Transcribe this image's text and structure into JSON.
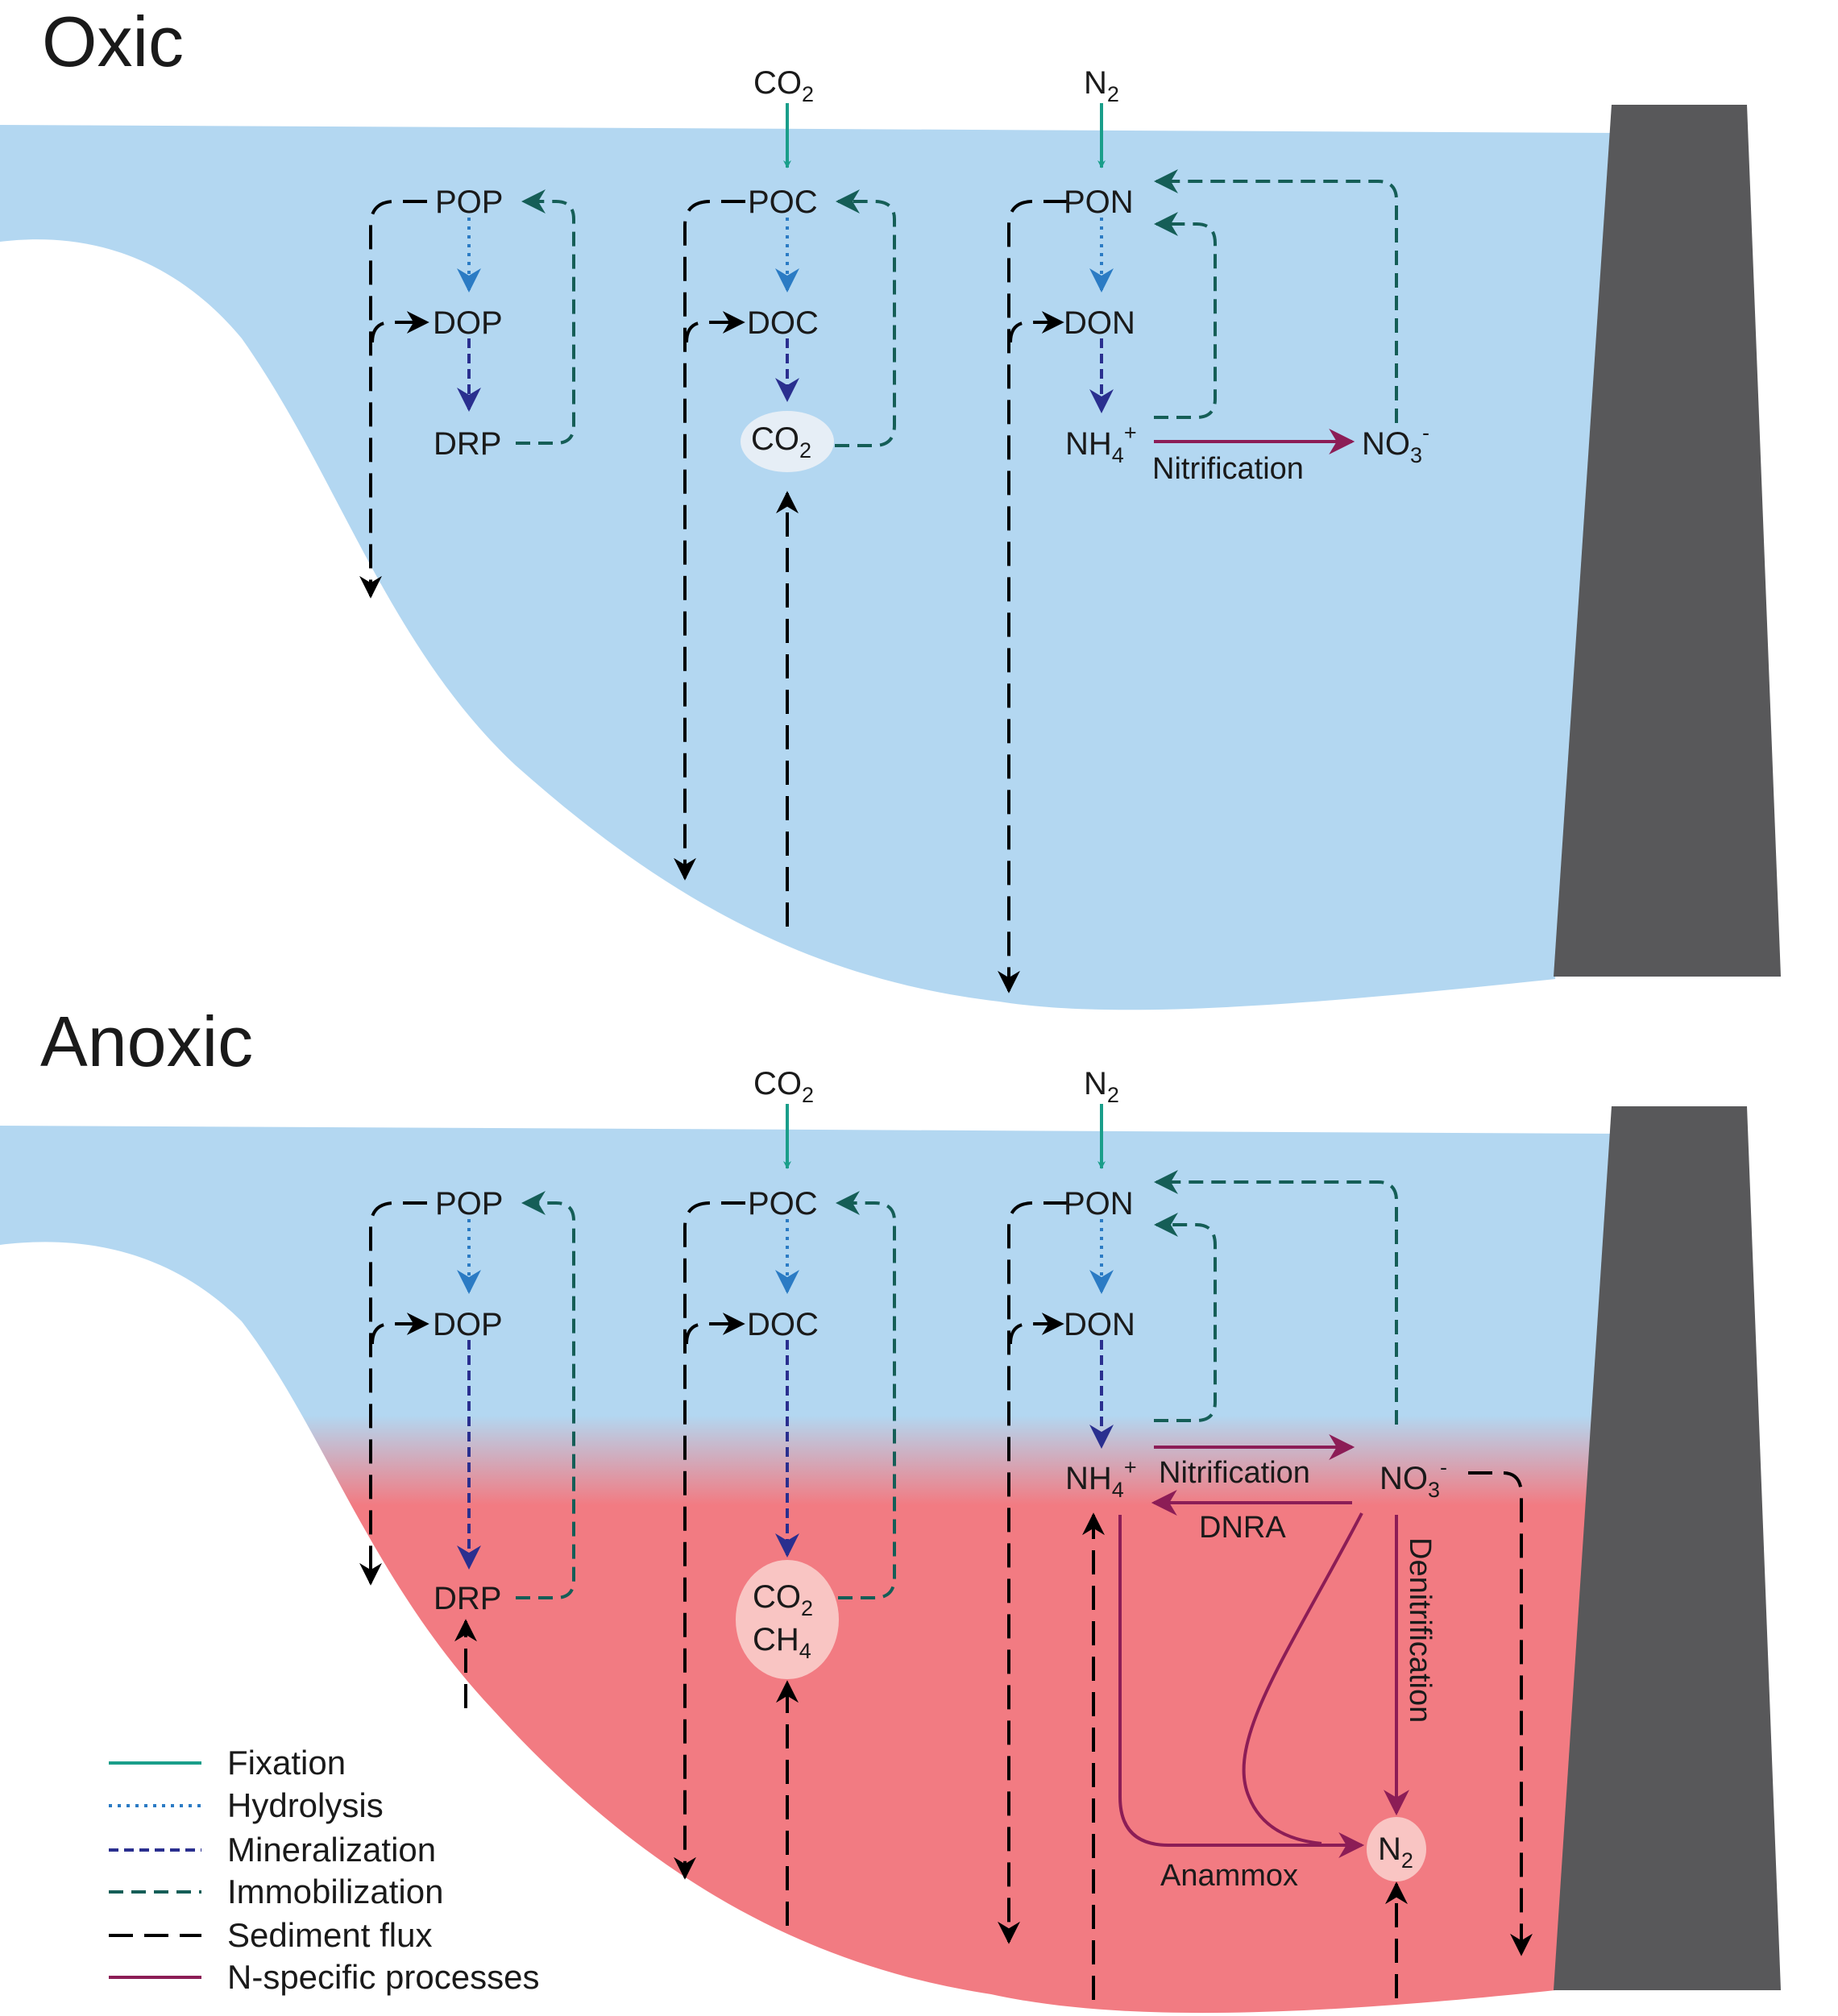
{
  "panels": {
    "oxic": {
      "title": "Oxic",
      "atm_co2": "CO",
      "atm_co2_sub": "2",
      "atm_n2": "N",
      "atm_n2_sub": "2",
      "pop": "POP",
      "dop": "DOP",
      "drp": "DRP",
      "poc": "POC",
      "doc": "DOC",
      "co2": "CO",
      "co2_sub": "2",
      "pon": "PON",
      "don": "DON",
      "nh4": "NH",
      "nh4_sub": "4",
      "nh4_sup": "+",
      "no3": "NO",
      "no3_sub": "3",
      "no3_sup": "-",
      "nitrification": "Nitrification"
    },
    "anoxic": {
      "title": "Anoxic",
      "atm_co2": "CO",
      "atm_co2_sub": "2",
      "atm_n2": "N",
      "atm_n2_sub": "2",
      "pop": "POP",
      "dop": "DOP",
      "drp": "DRP",
      "poc": "POC",
      "doc": "DOC",
      "co2": "CO",
      "co2_sub": "2",
      "ch4": "CH",
      "ch4_sub": "4",
      "pon": "PON",
      "don": "DON",
      "nh4": "NH",
      "nh4_sub": "4",
      "nh4_sup": "+",
      "no3": "NO",
      "no3_sub": "3",
      "no3_sup": "-",
      "n2": "N",
      "n2_sub": "2",
      "nitrification": "Nitrification",
      "dnra": "DNRA",
      "denitrification": "Denitrification",
      "anammox": "Anammox"
    }
  },
  "legend": {
    "items": [
      {
        "label": "Fixation",
        "style": "solid",
        "color": "#1a9e8a"
      },
      {
        "label": "Hydrolysis",
        "style": "dotted",
        "color": "#2b7bc4"
      },
      {
        "label": "Mineralization",
        "style": "dashed-short",
        "color": "#2a2f8f"
      },
      {
        "label": "Immobilization",
        "style": "dashed",
        "color": "#155e57"
      },
      {
        "label": "Sediment flux",
        "style": "dashed-long",
        "color": "#000000"
      },
      {
        "label": "N-specific processes",
        "style": "solid",
        "color": "#8c1d56"
      }
    ]
  },
  "colors": {
    "water": "#b3d7f1",
    "anoxic_water": "#f27b82",
    "dam": "#58585a",
    "fixation": "#1a9e8a",
    "hydrolysis": "#2b7bc4",
    "mineralization": "#2a2f8f",
    "immobilization": "#155e57",
    "sediment": "#000000",
    "n_specific": "#8c1d56"
  }
}
